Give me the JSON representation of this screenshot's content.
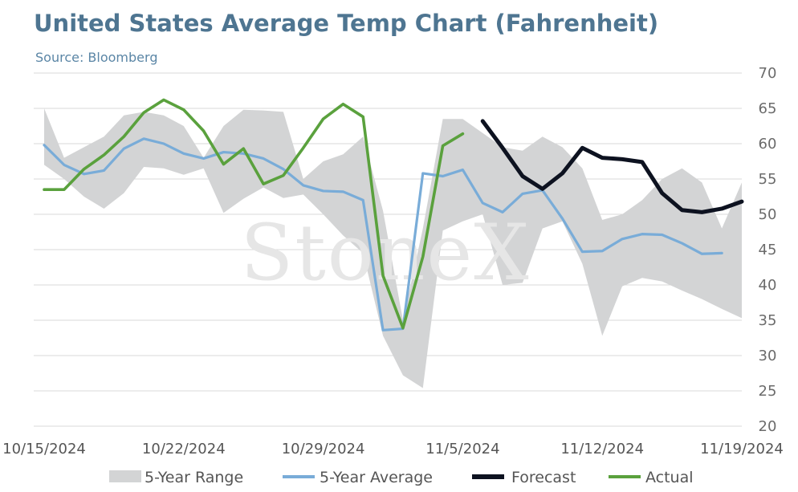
{
  "chart_data": {
    "type": "line",
    "title": "United States Average Temp Chart (Fahrenheit)",
    "subtitle": "Source: Bloomberg",
    "watermark": "StoneX",
    "ylim": [
      20,
      70
    ],
    "yticks": [
      20,
      25,
      30,
      35,
      40,
      45,
      50,
      55,
      60,
      65,
      70
    ],
    "y_axis_position": "right",
    "grid": true,
    "x_start": "2024-10-15",
    "x_end": "2024-11-19",
    "xtick_labels": [
      "10/15/2024",
      "10/22/2024",
      "10/29/2024",
      "11/5/2024",
      "11/12/2024",
      "11/19/2024"
    ],
    "legend_position": "bottom",
    "legend": [
      "5-Year Range",
      "5-Year Average",
      "Forecast",
      "Actual"
    ],
    "colors": {
      "range": "#d3d4d5",
      "average": "#79acd8",
      "forecast": "#0d1220",
      "actual": "#5aa13d",
      "title": "#4e7591",
      "subtitle": "#5b86a6",
      "grid": "#d9d9d9"
    },
    "range_band": {
      "name": "5-Year Range",
      "dates": [
        "2024-10-15",
        "2024-10-16",
        "2024-10-17",
        "2024-10-18",
        "2024-10-19",
        "2024-10-20",
        "2024-10-21",
        "2024-10-22",
        "2024-10-23",
        "2024-10-24",
        "2024-10-25",
        "2024-10-26",
        "2024-10-27",
        "2024-10-28",
        "2024-10-29",
        "2024-10-30",
        "2024-10-31",
        "2024-11-01",
        "2024-11-02",
        "2024-11-03",
        "2024-11-04",
        "2024-11-05",
        "2024-11-06",
        "2024-11-07",
        "2024-11-08",
        "2024-11-09",
        "2024-11-10",
        "2024-11-11",
        "2024-11-12",
        "2024-11-13",
        "2024-11-14",
        "2024-11-15",
        "2024-11-16",
        "2024-11-17",
        "2024-11-18",
        "2024-11-19"
      ],
      "upper": [
        65,
        58,
        59.5,
        61,
        64,
        64.5,
        64,
        62.5,
        58,
        62.5,
        64.8,
        64.7,
        64.5,
        55,
        57.5,
        58.5,
        61,
        50.5,
        35,
        48,
        63.5,
        63.5,
        61.5,
        59.5,
        59,
        61,
        59.5,
        56.5,
        49.2,
        50,
        52,
        55,
        56.5,
        54.5,
        48,
        54.5
      ],
      "lower": [
        57,
        55,
        52.5,
        50.8,
        53,
        56.7,
        56.5,
        55.6,
        56.5,
        50.2,
        52.2,
        53.8,
        52.3,
        52.8,
        50,
        47,
        44.5,
        32.8,
        27.2,
        25.4,
        47.7,
        49,
        50,
        40,
        40.3,
        48,
        49,
        43,
        32.8,
        39.8,
        41,
        40.5,
        39.2,
        38,
        36.6,
        35.3
      ]
    },
    "series": [
      {
        "name": "5-Year Average",
        "dates": [
          "2024-10-15",
          "2024-10-16",
          "2024-10-17",
          "2024-10-18",
          "2024-10-19",
          "2024-10-20",
          "2024-10-21",
          "2024-10-22",
          "2024-10-23",
          "2024-10-24",
          "2024-10-25",
          "2024-10-26",
          "2024-10-27",
          "2024-10-28",
          "2024-10-29",
          "2024-10-30",
          "2024-10-31",
          "2024-11-01",
          "2024-11-02",
          "2024-11-03",
          "2024-11-04",
          "2024-11-05",
          "2024-11-06",
          "2024-11-07",
          "2024-11-08",
          "2024-11-09",
          "2024-11-10",
          "2024-11-11",
          "2024-11-12",
          "2024-11-13",
          "2024-11-14",
          "2024-11-15",
          "2024-11-16",
          "2024-11-17",
          "2024-11-18",
          "2024-11-19"
        ],
        "values": [
          59.8,
          57,
          55.7,
          56.2,
          59.3,
          60.7,
          60,
          58.6,
          57.9,
          58.8,
          58.6,
          57.9,
          56.4,
          54.1,
          53.3,
          53.2,
          52,
          33.6,
          33.8,
          55.8,
          55.4,
          56.3,
          51.6,
          50.3,
          52.9,
          53.4,
          49.4,
          44.7,
          44.8,
          46.5,
          47.2,
          47.1,
          45.9,
          44.4,
          44.5,
          null
        ]
      },
      {
        "name": "Forecast",
        "dates": [
          "2024-11-06",
          "2024-11-07",
          "2024-11-08",
          "2024-11-09",
          "2024-11-10",
          "2024-11-11",
          "2024-11-12",
          "2024-11-13",
          "2024-11-14",
          "2024-11-15",
          "2024-11-16",
          "2024-11-17",
          "2024-11-18",
          "2024-11-19"
        ],
        "values": [
          63.2,
          59.4,
          55.4,
          53.6,
          55.8,
          59.4,
          58,
          57.8,
          57.4,
          53,
          50.6,
          50.3,
          50.8,
          51.8
        ]
      },
      {
        "name": "Actual",
        "dates": [
          "2024-10-15",
          "2024-10-16",
          "2024-10-17",
          "2024-10-18",
          "2024-10-19",
          "2024-10-20",
          "2024-10-21",
          "2024-10-22",
          "2024-10-23",
          "2024-10-24",
          "2024-10-25",
          "2024-10-26",
          "2024-10-27",
          "2024-10-28",
          "2024-10-29",
          "2024-10-30",
          "2024-10-31",
          "2024-11-01",
          "2024-11-02",
          "2024-11-03",
          "2024-11-04",
          "2024-11-05"
        ],
        "values": [
          53.5,
          53.5,
          56.4,
          58.4,
          61,
          64.4,
          66.2,
          64.8,
          61.8,
          57.1,
          59.3,
          54.3,
          55.5,
          59.4,
          63.5,
          65.6,
          63.8,
          41.3,
          33.9,
          44,
          59.7,
          61.4
        ]
      }
    ]
  }
}
